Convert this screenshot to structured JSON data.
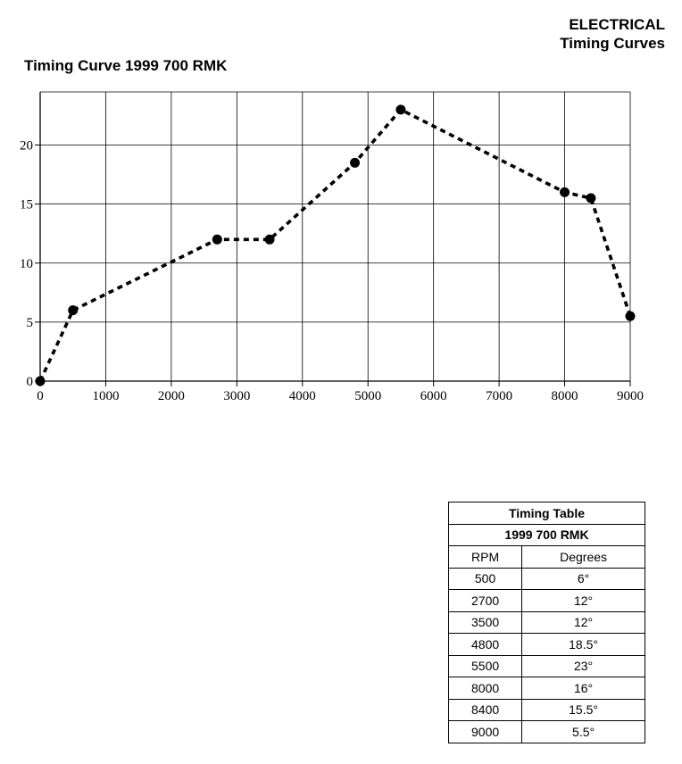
{
  "header": {
    "line1": "ELECTRICAL",
    "line2": "Timing Curves"
  },
  "chart_data": {
    "type": "line",
    "title": "Timing Curve 1999 700 RMK",
    "xlabel": "",
    "ylabel": "",
    "xlim": [
      0,
      9000
    ],
    "ylim": [
      0,
      24.5
    ],
    "x_ticks": [
      0,
      1000,
      2000,
      3000,
      4000,
      5000,
      6000,
      7000,
      8000,
      9000
    ],
    "y_ticks": [
      0,
      5,
      10,
      15,
      20
    ],
    "grid": true,
    "line_style": "dashed",
    "marker": "circle",
    "x": [
      0,
      500,
      2700,
      3500,
      4800,
      5500,
      8000,
      8400,
      9000
    ],
    "y": [
      0,
      6,
      12,
      12,
      18.5,
      23,
      16,
      15.5,
      5.5
    ],
    "colors": {
      "line": "#000000",
      "grid": "#000000",
      "marker": "#000000"
    }
  },
  "table": {
    "title": "Timing Table",
    "subtitle": "1999 700 RMK",
    "columns": [
      "RPM",
      "Degrees"
    ],
    "rows": [
      [
        "500",
        "6°"
      ],
      [
        "2700",
        "12°"
      ],
      [
        "3500",
        "12°"
      ],
      [
        "4800",
        "18.5°"
      ],
      [
        "5500",
        "23°"
      ],
      [
        "8000",
        "16°"
      ],
      [
        "8400",
        "15.5°"
      ],
      [
        "9000",
        "5.5°"
      ]
    ]
  }
}
